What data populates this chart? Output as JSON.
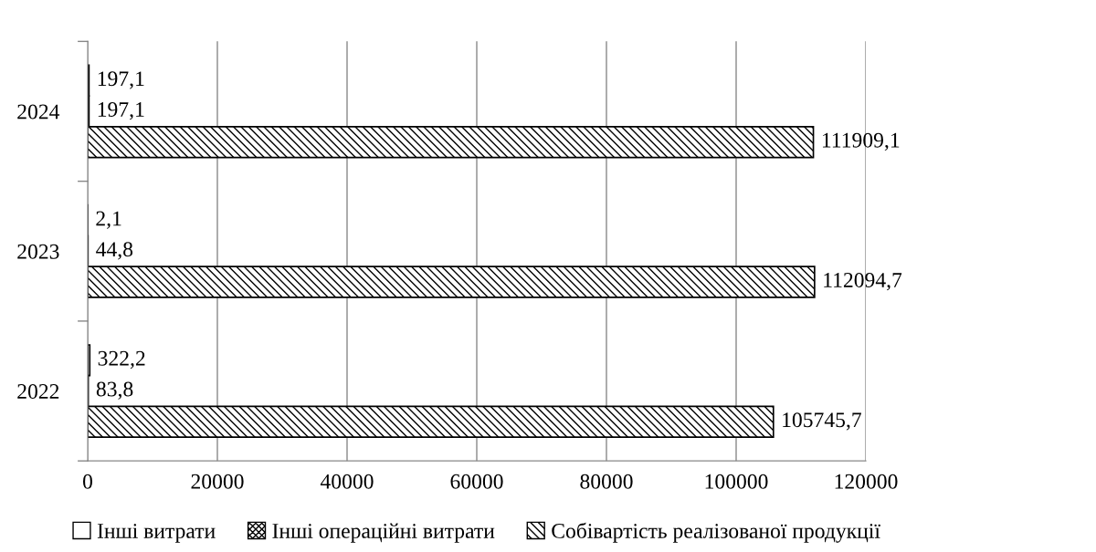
{
  "chart_data": {
    "type": "bar",
    "orientation": "horizontal",
    "categories": [
      "2024",
      "2023",
      "2022"
    ],
    "series": [
      {
        "name": "Інші витрати",
        "color": "#ffffff",
        "values": [
          197.1,
          2.1,
          322.2
        ],
        "value_labels": [
          "197,1",
          "2,1",
          "322,2"
        ]
      },
      {
        "name": "Інші операційні витрати",
        "color": "#000000",
        "values": [
          197.1,
          44.8,
          83.8
        ],
        "value_labels": [
          "197,1",
          "44,8",
          "83,8"
        ]
      },
      {
        "name": "Собівартість реалізованої продукції",
        "color": "#000000",
        "values": [
          111909.1,
          112094.7,
          105745.7
        ],
        "value_labels": [
          "111909,1",
          "112094,7",
          "105745,7"
        ]
      }
    ],
    "xlim": [
      0,
      120000
    ],
    "xticks": [
      0,
      20000,
      40000,
      60000,
      80000,
      100000,
      120000
    ],
    "grid": "x",
    "legend": "bottom"
  }
}
